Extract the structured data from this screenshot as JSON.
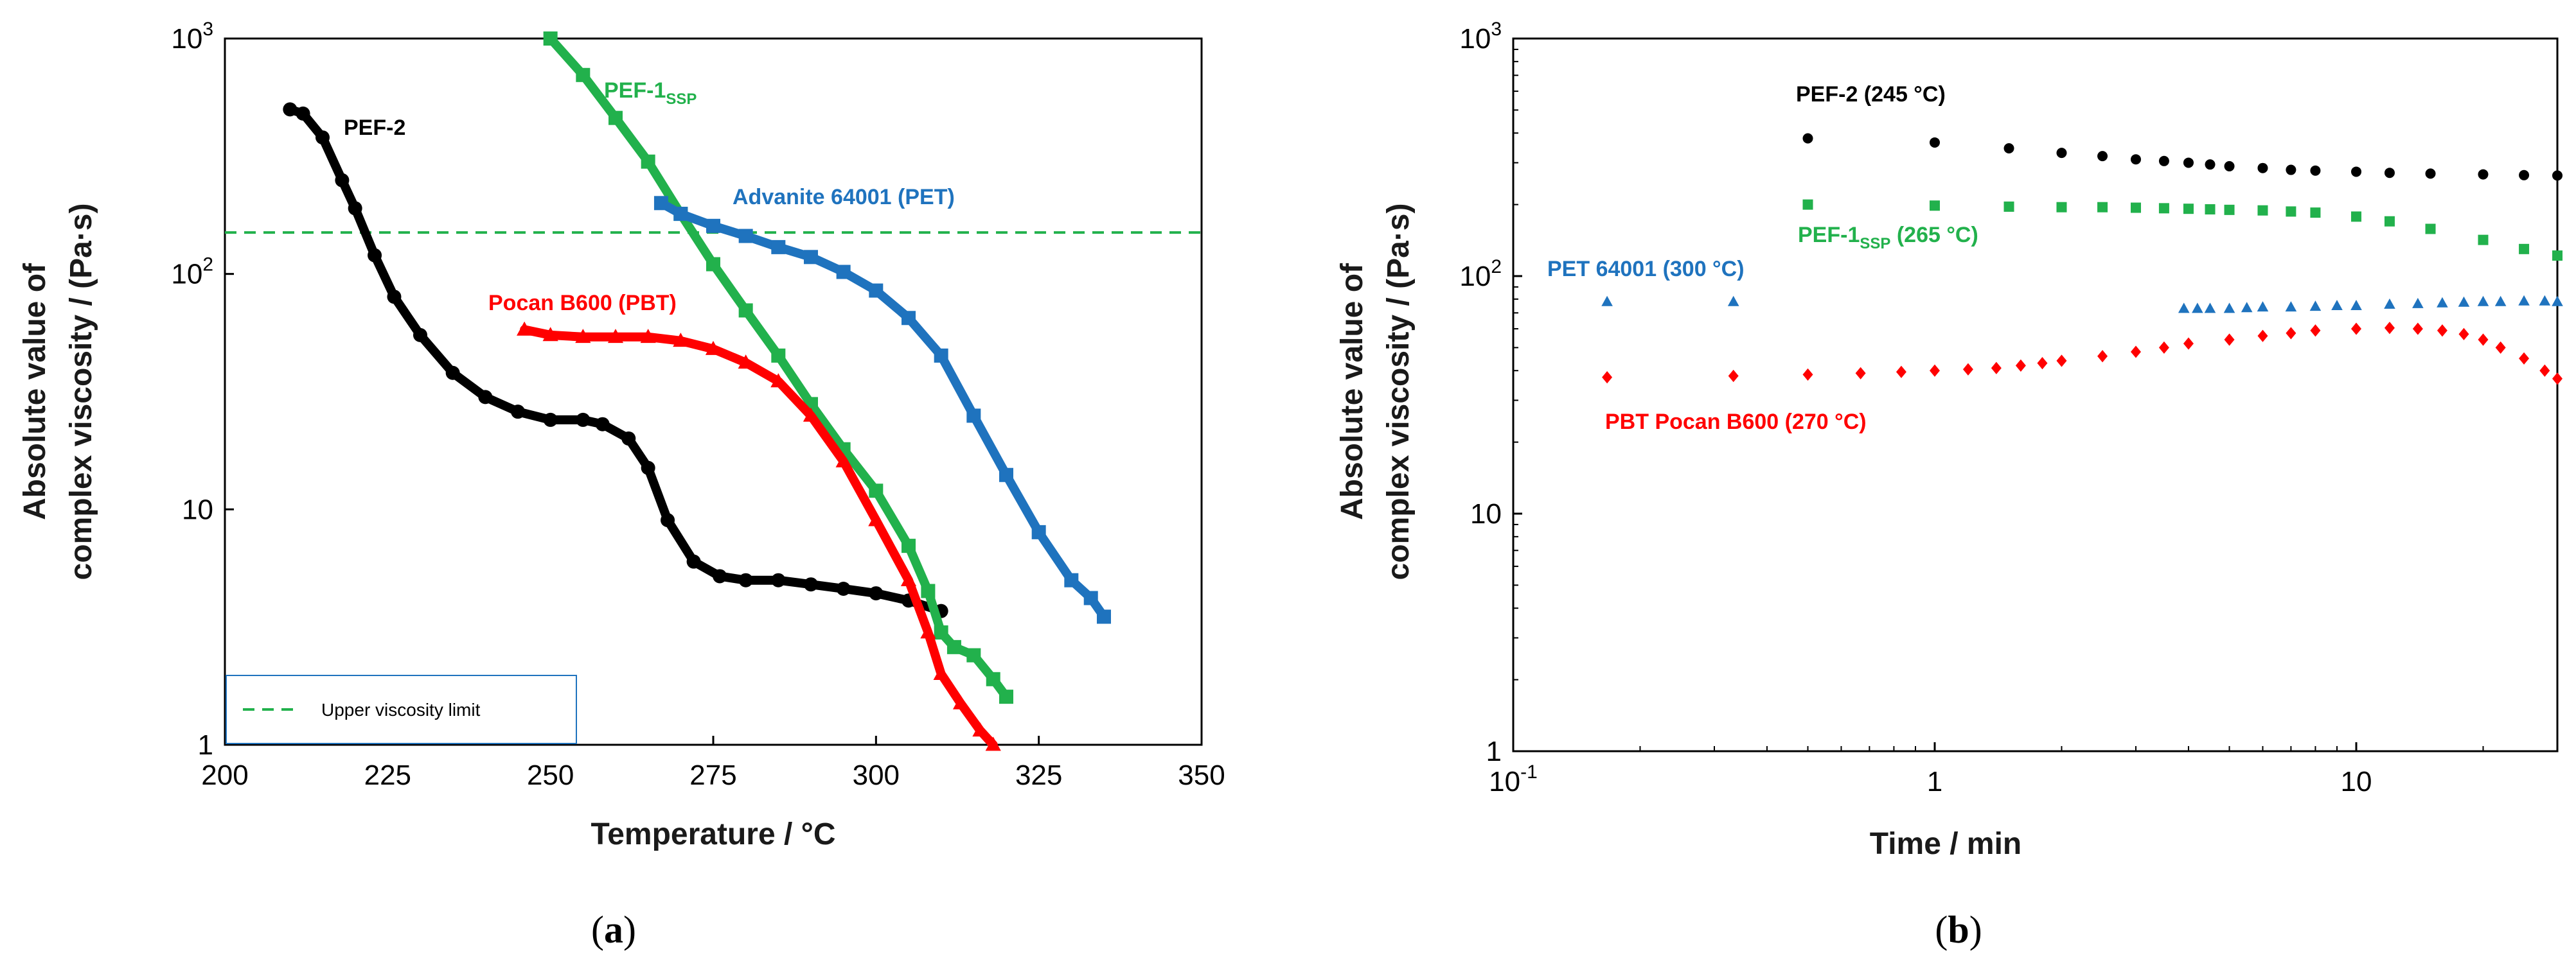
{
  "chart_data": [
    {
      "type": "line",
      "panel_label": "a",
      "xlabel": "Temperature / °C",
      "ylabel": [
        "Absolute value of",
        "complex viscosity / (Pa·s)"
      ],
      "xlim": [
        200,
        350
      ],
      "ylim": [
        1,
        1000
      ],
      "yscale": "log",
      "xticks": [
        "200",
        "225",
        "250",
        "275",
        "300",
        "325",
        "350"
      ],
      "yticks": [
        {
          "base": "10",
          "exp": "3",
          "v": 1000
        },
        {
          "base": "10",
          "exp": "2",
          "v": 100
        },
        {
          "base": "10",
          "exp": "",
          "v": 10
        },
        {
          "base": "1",
          "exp": "",
          "v": 1
        }
      ],
      "reference_line": {
        "value": 150,
        "legend": "Upper viscosity limit",
        "color": "#22b14c",
        "legend_position": "bottom-left"
      },
      "series": [
        {
          "name": "PEF-2",
          "color": "#000000",
          "marker": "circle",
          "x": [
            210,
            212,
            215,
            218,
            220,
            223,
            226,
            230,
            235,
            240,
            245,
            250,
            255,
            258,
            262,
            265,
            268,
            272,
            276,
            280,
            285,
            290,
            295,
            300,
            305,
            310
          ],
          "y": [
            500,
            480,
            380,
            250,
            190,
            120,
            80,
            55,
            38,
            30,
            26,
            24,
            24,
            23,
            20,
            15,
            9,
            6,
            5.2,
            5,
            5,
            4.8,
            4.6,
            4.4,
            4.1,
            3.7
          ]
        },
        {
          "name": "PEF-1",
          "name_sub": "SSP",
          "color": "#22b14c",
          "marker": "square",
          "x": [
            250,
            255,
            260,
            265,
            270,
            275,
            280,
            285,
            290,
            295,
            300,
            305,
            308,
            310,
            312,
            315,
            318,
            320
          ],
          "y": [
            1000,
            700,
            460,
            300,
            180,
            110,
            70,
            45,
            28,
            18,
            12,
            7,
            4.5,
            3,
            2.6,
            2.4,
            1.9,
            1.6
          ]
        },
        {
          "name": "Advanite 64001 (PET)",
          "color": "#1f73be",
          "marker": "square",
          "x": [
            267,
            270,
            275,
            280,
            285,
            290,
            295,
            300,
            305,
            310,
            315,
            320,
            325,
            330,
            333,
            335
          ],
          "y": [
            200,
            180,
            160,
            145,
            130,
            118,
            102,
            85,
            65,
            45,
            25,
            14,
            8,
            5,
            4.2,
            3.5
          ]
        },
        {
          "name": "Pocan B600 (PBT)",
          "color": "#ff0000",
          "marker": "triangle",
          "x": [
            246,
            250,
            255,
            260,
            265,
            270,
            275,
            280,
            285,
            290,
            295,
            300,
            305,
            308,
            310,
            313,
            316,
            318
          ],
          "y": [
            58,
            55,
            54,
            54,
            54,
            52,
            48,
            42,
            35,
            25,
            16,
            9,
            5,
            3,
            2,
            1.5,
            1.15,
            1
          ]
        }
      ]
    },
    {
      "type": "scatter",
      "panel_label": "b",
      "xlabel": "Time / min",
      "ylabel": [
        "Absolute value of",
        "complex viscosity / (Pa·s)"
      ],
      "xscale": "log",
      "yscale": "log",
      "xlim": [
        0.1,
        30
      ],
      "ylim": [
        1,
        1000
      ],
      "xticks": [
        {
          "base": "10",
          "exp": "-1",
          "v": 0.1
        },
        {
          "base": "1",
          "exp": "",
          "v": 1
        },
        {
          "base": "10",
          "exp": "",
          "v": 10
        }
      ],
      "yticks": [
        {
          "base": "10",
          "exp": "3",
          "v": 1000
        },
        {
          "base": "10",
          "exp": "2",
          "v": 100
        },
        {
          "base": "10",
          "exp": "",
          "v": 10
        },
        {
          "base": "1",
          "exp": "",
          "v": 1
        }
      ],
      "series": [
        {
          "name": "PEF-2 (245 °C)",
          "color": "#000000",
          "marker": "circle",
          "x": [
            0.5,
            1.0,
            1.5,
            2.0,
            2.5,
            3.0,
            3.5,
            4.0,
            4.5,
            5.0,
            6,
            7,
            8,
            10,
            12,
            15,
            20,
            25,
            30
          ],
          "y": [
            380,
            365,
            345,
            330,
            320,
            310,
            305,
            300,
            295,
            290,
            285,
            280,
            278,
            275,
            272,
            270,
            268,
            266,
            265
          ]
        },
        {
          "name": "PEF-1",
          "name_sub": "SSP",
          "name_suffix": " (265 °C)",
          "color": "#22b14c",
          "marker": "square",
          "x": [
            0.5,
            1.0,
            1.5,
            2.0,
            2.5,
            3.0,
            3.5,
            4.0,
            4.5,
            5.0,
            6,
            7,
            8,
            10,
            12,
            15,
            20,
            25,
            30
          ],
          "y": [
            200,
            198,
            196,
            195,
            195,
            194,
            193,
            192,
            191,
            190,
            189,
            187,
            185,
            178,
            170,
            158,
            142,
            130,
            122
          ]
        },
        {
          "name": "PET 64001 (300 °C)",
          "color": "#1f73be",
          "marker": "triangle",
          "x": [
            0.167,
            0.333,
            3.9,
            4.2,
            4.5,
            5,
            5.5,
            6,
            7,
            8,
            9,
            10,
            12,
            14,
            16,
            18,
            20,
            22,
            25,
            28,
            30
          ],
          "y": [
            78,
            78,
            73,
            73,
            73,
            73,
            73.5,
            74,
            74,
            74.5,
            75,
            75,
            76,
            76.5,
            77,
            77.5,
            78,
            78,
            78.5,
            78.5,
            78
          ]
        },
        {
          "name": "PBT Pocan B600 (270 °C)",
          "color": "#ff0000",
          "marker": "diamond",
          "x": [
            0.167,
            0.333,
            0.5,
            0.667,
            0.833,
            1.0,
            1.2,
            1.4,
            1.6,
            1.8,
            2.0,
            2.5,
            3.0,
            3.5,
            4,
            5,
            6,
            7,
            8,
            10,
            12,
            14,
            16,
            18,
            20,
            22,
            25,
            28,
            30
          ],
          "y": [
            37.5,
            38,
            38.5,
            39,
            39.5,
            40,
            40.5,
            41,
            42,
            43,
            44,
            46,
            48,
            50,
            52,
            54,
            56,
            57.5,
            59,
            60,
            60.5,
            60,
            59,
            57,
            54,
            50,
            45,
            40,
            37
          ]
        }
      ]
    }
  ]
}
